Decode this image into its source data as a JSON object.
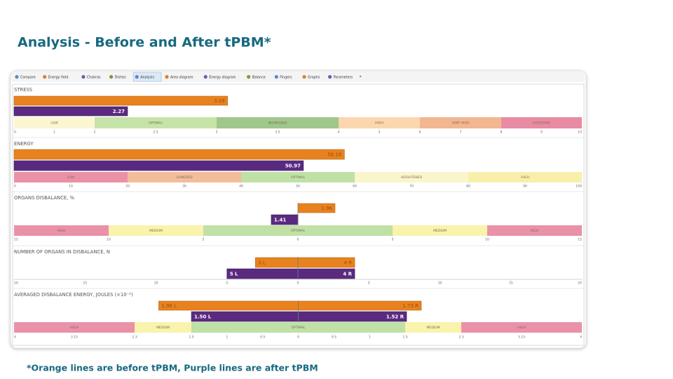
{
  "title": "Analysis - Before and After tPBM*",
  "footnote": "*Orange lines are before tPBM, Purple lines are after tPBM",
  "tabs": [
    "Compare",
    "Energy field",
    "Chakras",
    "Dishes",
    "Analysis",
    "Area diagram",
    "Energy diagram",
    "Balance",
    "Fingers",
    "Graphs",
    "Parameters"
  ],
  "selected_tab": "Analysis",
  "before_color": "#e8821e",
  "after_color": "#5a2a80",
  "panels": [
    {
      "label": "STRESS",
      "before": {
        "values": [
          3.09
        ]
      },
      "after": {
        "values": [
          2.27
        ]
      },
      "zones": [
        {
          "label": "LOW",
          "from": 0,
          "to": 2,
          "color": "#fbf6d2"
        },
        {
          "label": "OPTIMAL",
          "from": 2,
          "to": 3,
          "color": "#c6e4a8"
        },
        {
          "label": "INCREASED",
          "from": 3,
          "to": 4,
          "color": "#9fc78c"
        },
        {
          "label": "HIGH",
          "from": 4,
          "to": 6,
          "color": "#fbd6ae"
        },
        {
          "label": "VERY HIGH",
          "from": 6,
          "to": 8,
          "color": "#f2b690"
        },
        {
          "label": "EXCESSIVE",
          "from": 8,
          "to": 10,
          "color": "#e98ba3"
        }
      ],
      "ticks": [
        0,
        1,
        2,
        2.5,
        3,
        3.5,
        4,
        5,
        6,
        7,
        8,
        9,
        10
      ]
    },
    {
      "label": "ENERGY",
      "before": {
        "values": [
          58.18
        ]
      },
      "after": {
        "values": [
          50.97
        ]
      },
      "zones": [
        {
          "label": "LOW",
          "from": 0,
          "to": 20,
          "color": "#ea91a8"
        },
        {
          "label": "LOWERED",
          "from": 20,
          "to": 40,
          "color": "#f4bd9a"
        },
        {
          "label": "OPTIMAL",
          "from": 40,
          "to": 60,
          "color": "#c0e1a6"
        },
        {
          "label": "HEIGHTENED",
          "from": 60,
          "to": 80,
          "color": "#fbf5cc"
        },
        {
          "label": "HIGH",
          "from": 80,
          "to": 100,
          "color": "#f8f0aa"
        }
      ],
      "ticks": [
        0,
        10,
        20,
        30,
        40,
        50,
        60,
        70,
        80,
        90,
        100
      ]
    },
    {
      "label": "ORGANS DISBALANCE, %",
      "before": {
        "values": [
          1.96
        ]
      },
      "after": {
        "values": [
          -1.41
        ],
        "value_labels": [
          "1.41"
        ]
      },
      "zones": [
        {
          "label": "HIGH",
          "from": -15,
          "to": -10,
          "color": "#ea91a8"
        },
        {
          "label": "MEDIUM",
          "from": -10,
          "to": -5,
          "color": "#f9f3ac"
        },
        {
          "label": "OPTIMAL",
          "from": -5,
          "to": 5,
          "color": "#c0e1a6"
        },
        {
          "label": "MEDIUM",
          "from": 5,
          "to": 10,
          "color": "#f9f3ac"
        },
        {
          "label": "HIGH",
          "from": 10,
          "to": 15,
          "color": "#ea91a8"
        }
      ],
      "ticks": [
        {
          "value": -15,
          "label": "15"
        },
        {
          "value": -10,
          "label": "10"
        },
        {
          "value": -5,
          "label": "5"
        },
        0,
        5,
        10,
        15
      ]
    },
    {
      "label": "NUMBER OF ORGANS IN DISBALANCE, N",
      "before": {
        "values": [
          -3,
          4
        ],
        "value_labels": [
          "3 L",
          "4 R"
        ]
      },
      "after": {
        "values": [
          -5,
          4
        ],
        "value_labels": [
          "5 L",
          "4 R"
        ]
      },
      "ticks": [
        {
          "value": -20,
          "label": "20"
        },
        {
          "value": -15,
          "label": "15"
        },
        {
          "value": -10,
          "label": "10"
        },
        {
          "value": -5,
          "label": "5"
        },
        0,
        5,
        10,
        15,
        20
      ]
    },
    {
      "label": "AVERAGED DISBALANCE ENERGY, JOULES (×10⁻²)",
      "before": {
        "values": [
          -1.96,
          1.73
        ],
        "value_labels": [
          "1.96 L",
          "1.73 R"
        ]
      },
      "after": {
        "values": [
          -1.5,
          1.52
        ],
        "value_labels": [
          "1.50 L",
          "1.52 R"
        ]
      },
      "zones": [
        {
          "label": "HIGH",
          "from": -4,
          "to": -2.3,
          "color": "#ea91a8"
        },
        {
          "label": "MEDIUM",
          "from": -2.3,
          "to": -1.5,
          "color": "#f9f3ac"
        },
        {
          "label": "OPTIMAL",
          "from": -1.5,
          "to": 1.5,
          "color": "#c0e1a6"
        },
        {
          "label": "MEDIUM",
          "from": 1.5,
          "to": 2.3,
          "color": "#f9f3ac"
        },
        {
          "label": "HIGH",
          "from": 2.3,
          "to": 4,
          "color": "#ea91a8"
        }
      ],
      "ticks": [
        {
          "value": -4,
          "label": "4"
        },
        {
          "value": -3.15,
          "label": "3.15"
        },
        {
          "value": -2.3,
          "label": "2.3"
        },
        {
          "value": -1.5,
          "label": "1.5"
        },
        {
          "value": -1,
          "label": "1"
        },
        {
          "value": -0.5,
          "label": "0.5"
        },
        0,
        0.5,
        1,
        1.5,
        2.3,
        3.15,
        4
      ]
    }
  ]
}
